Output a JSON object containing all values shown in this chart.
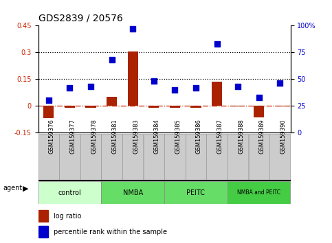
{
  "title": "GDS2839 / 20576",
  "samples": [
    "GSM159376",
    "GSM159377",
    "GSM159378",
    "GSM159381",
    "GSM159383",
    "GSM159384",
    "GSM159385",
    "GSM159386",
    "GSM159387",
    "GSM159388",
    "GSM159389",
    "GSM159390"
  ],
  "log_ratio": [
    -0.07,
    -0.01,
    -0.01,
    0.05,
    0.305,
    -0.01,
    -0.01,
    -0.01,
    0.135,
    -0.005,
    -0.065,
    -0.005
  ],
  "percentile_rank": [
    30,
    42,
    43,
    68,
    97,
    48,
    40,
    42,
    83,
    43,
    33,
    46
  ],
  "groups": [
    {
      "label": "control",
      "start": 0,
      "end": 3,
      "color": "#ccffcc"
    },
    {
      "label": "NMBA",
      "start": 3,
      "end": 6,
      "color": "#66dd66"
    },
    {
      "label": "PEITC",
      "start": 6,
      "end": 9,
      "color": "#66dd66"
    },
    {
      "label": "NMBA and PEITC",
      "start": 9,
      "end": 12,
      "color": "#44cc44"
    }
  ],
  "ylim_left": [
    -0.15,
    0.45
  ],
  "ylim_right": [
    0,
    100
  ],
  "yticks_left": [
    -0.15,
    0.0,
    0.15,
    0.3,
    0.45
  ],
  "yticks_right": [
    0,
    25,
    50,
    75,
    100
  ],
  "hlines": [
    0.15,
    0.3
  ],
  "bar_color": "#aa2200",
  "dot_color": "#0000cc",
  "zero_line_color": "#cc2200",
  "bar_width": 0.5,
  "dot_size": 28,
  "cell_color": "#cccccc",
  "cell_edge_color": "#999999",
  "title_fontsize": 10,
  "tick_fontsize": 7,
  "label_fontsize": 6,
  "group_fontsize": 7,
  "legend_fontsize": 7
}
